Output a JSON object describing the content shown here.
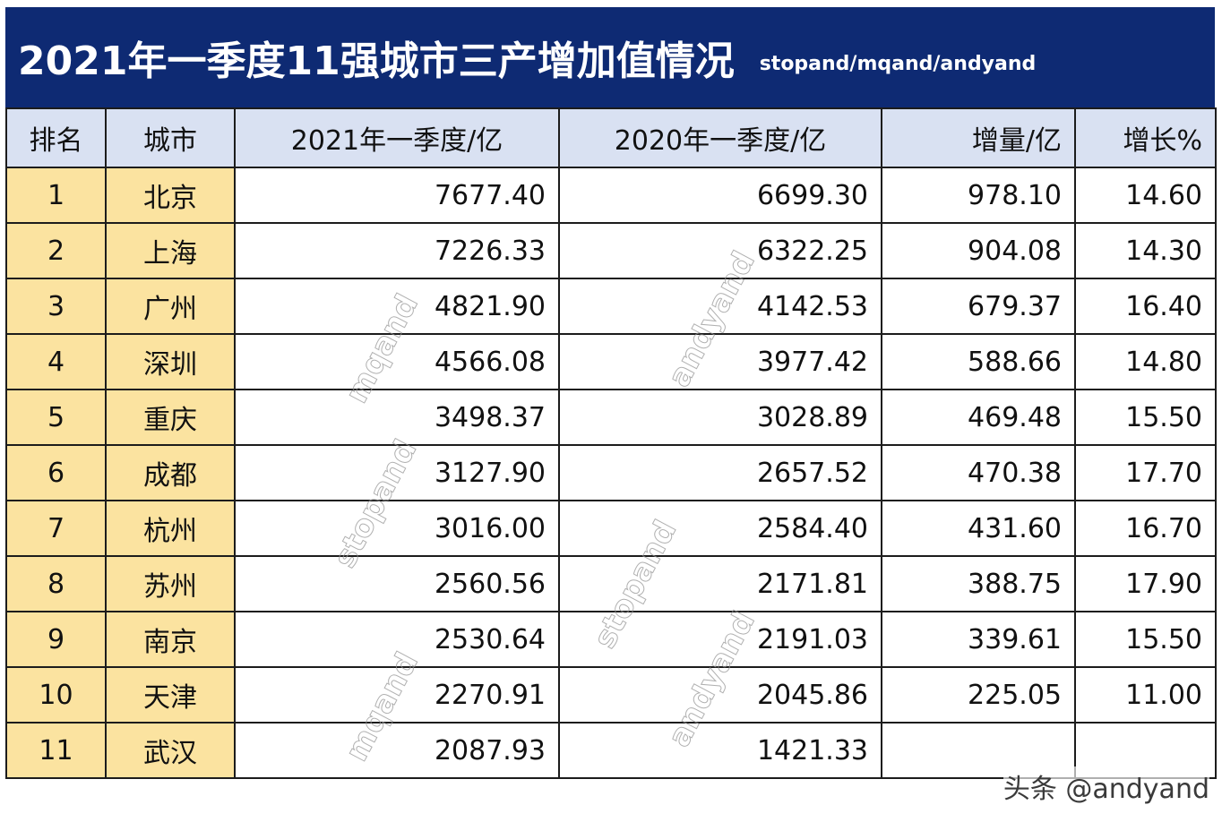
{
  "title": {
    "main": "2021年一季度11强城市三产增加值情况",
    "sub": "stopand/mqand/andyand"
  },
  "table": {
    "headers": [
      "排名",
      "城市",
      "2021年一季度/亿",
      "2020年一季度/亿",
      "增量/亿",
      "增长%"
    ],
    "rows": [
      [
        "1",
        "北京",
        "7677.40",
        "6699.30",
        "978.10",
        "14.60"
      ],
      [
        "2",
        "上海",
        "7226.33",
        "6322.25",
        "904.08",
        "14.30"
      ],
      [
        "3",
        "广州",
        "4821.90",
        "4142.53",
        "679.37",
        "16.40"
      ],
      [
        "4",
        "深圳",
        "4566.08",
        "3977.42",
        "588.66",
        "14.80"
      ],
      [
        "5",
        "重庆",
        "3498.37",
        "3028.89",
        "469.48",
        "15.50"
      ],
      [
        "6",
        "成都",
        "3127.90",
        "2657.52",
        "470.38",
        "17.70"
      ],
      [
        "7",
        "杭州",
        "3016.00",
        "2584.40",
        "431.60",
        "16.70"
      ],
      [
        "8",
        "苏州",
        "2560.56",
        "2171.81",
        "388.75",
        "17.90"
      ],
      [
        "9",
        "南京",
        "2530.64",
        "2191.03",
        "339.61",
        "15.50"
      ],
      [
        "10",
        "天津",
        "2270.91",
        "2045.86",
        "225.05",
        "11.00"
      ],
      [
        "11",
        "武汉",
        "2087.93",
        "1421.33",
        "",
        ""
      ]
    ]
  },
  "watermarks": [
    "mqand",
    "andyand",
    "stopand",
    "stopand",
    "andyand",
    "mqand",
    "andyand"
  ],
  "byline": "头条 @andyand",
  "colors": {
    "title_bg": "#0e2a73",
    "header_bg": "#d9e1f2",
    "rank_city_bg": "#fbe3a0"
  }
}
